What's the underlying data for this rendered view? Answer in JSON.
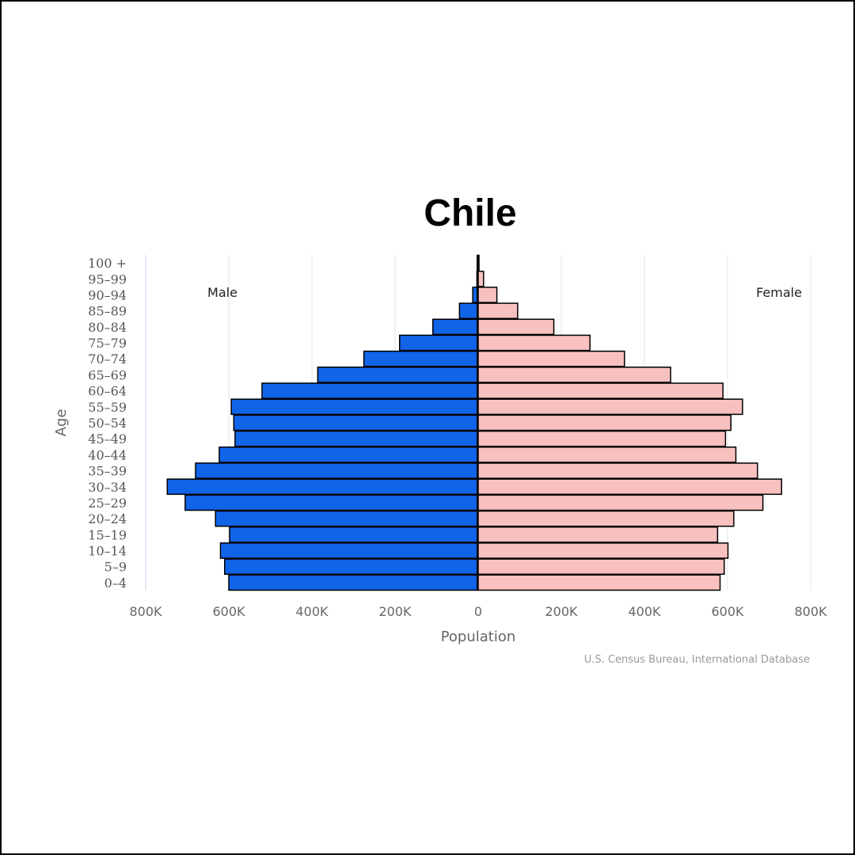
{
  "chart_data": {
    "type": "bar",
    "orientation": "horizontal-population-pyramid",
    "title": "Chile",
    "xlabel": "Population",
    "ylabel": "Age",
    "xlim": [
      -800000,
      800000
    ],
    "x_ticks": [
      -800000,
      -600000,
      -400000,
      -200000,
      0,
      200000,
      400000,
      600000,
      800000
    ],
    "x_tick_labels": [
      "800K",
      "600K",
      "400K",
      "200K",
      "0",
      "200K",
      "400K",
      "600K",
      "800K"
    ],
    "categories": [
      "0-4",
      "5-9",
      "10-14",
      "15-19",
      "20-24",
      "25-29",
      "30-34",
      "35-39",
      "40-44",
      "45-49",
      "50-54",
      "55-59",
      "60-64",
      "65-69",
      "70-74",
      "75-79",
      "80-84",
      "85-89",
      "90-94",
      "95-99",
      "100 +"
    ],
    "series": [
      {
        "name": "Male",
        "color": "#1164e8",
        "values": [
          600000,
          610000,
          620000,
          598000,
          632000,
          705000,
          748000,
          680000,
          623000,
          585000,
          588000,
          594000,
          520000,
          386000,
          275000,
          189000,
          109000,
          45000,
          13000,
          3000,
          1000
        ]
      },
      {
        "name": "Female",
        "color": "#f9c0c0",
        "values": [
          582000,
          592000,
          601000,
          576000,
          615000,
          685000,
          730000,
          672000,
          620000,
          595000,
          608000,
          636000,
          589000,
          463000,
          352000,
          269000,
          182000,
          95000,
          45000,
          13000,
          2000
        ]
      }
    ],
    "grid": true,
    "legend": [
      "Male",
      "Female"
    ],
    "source": "U.S. Census Bureau, International Database"
  }
}
